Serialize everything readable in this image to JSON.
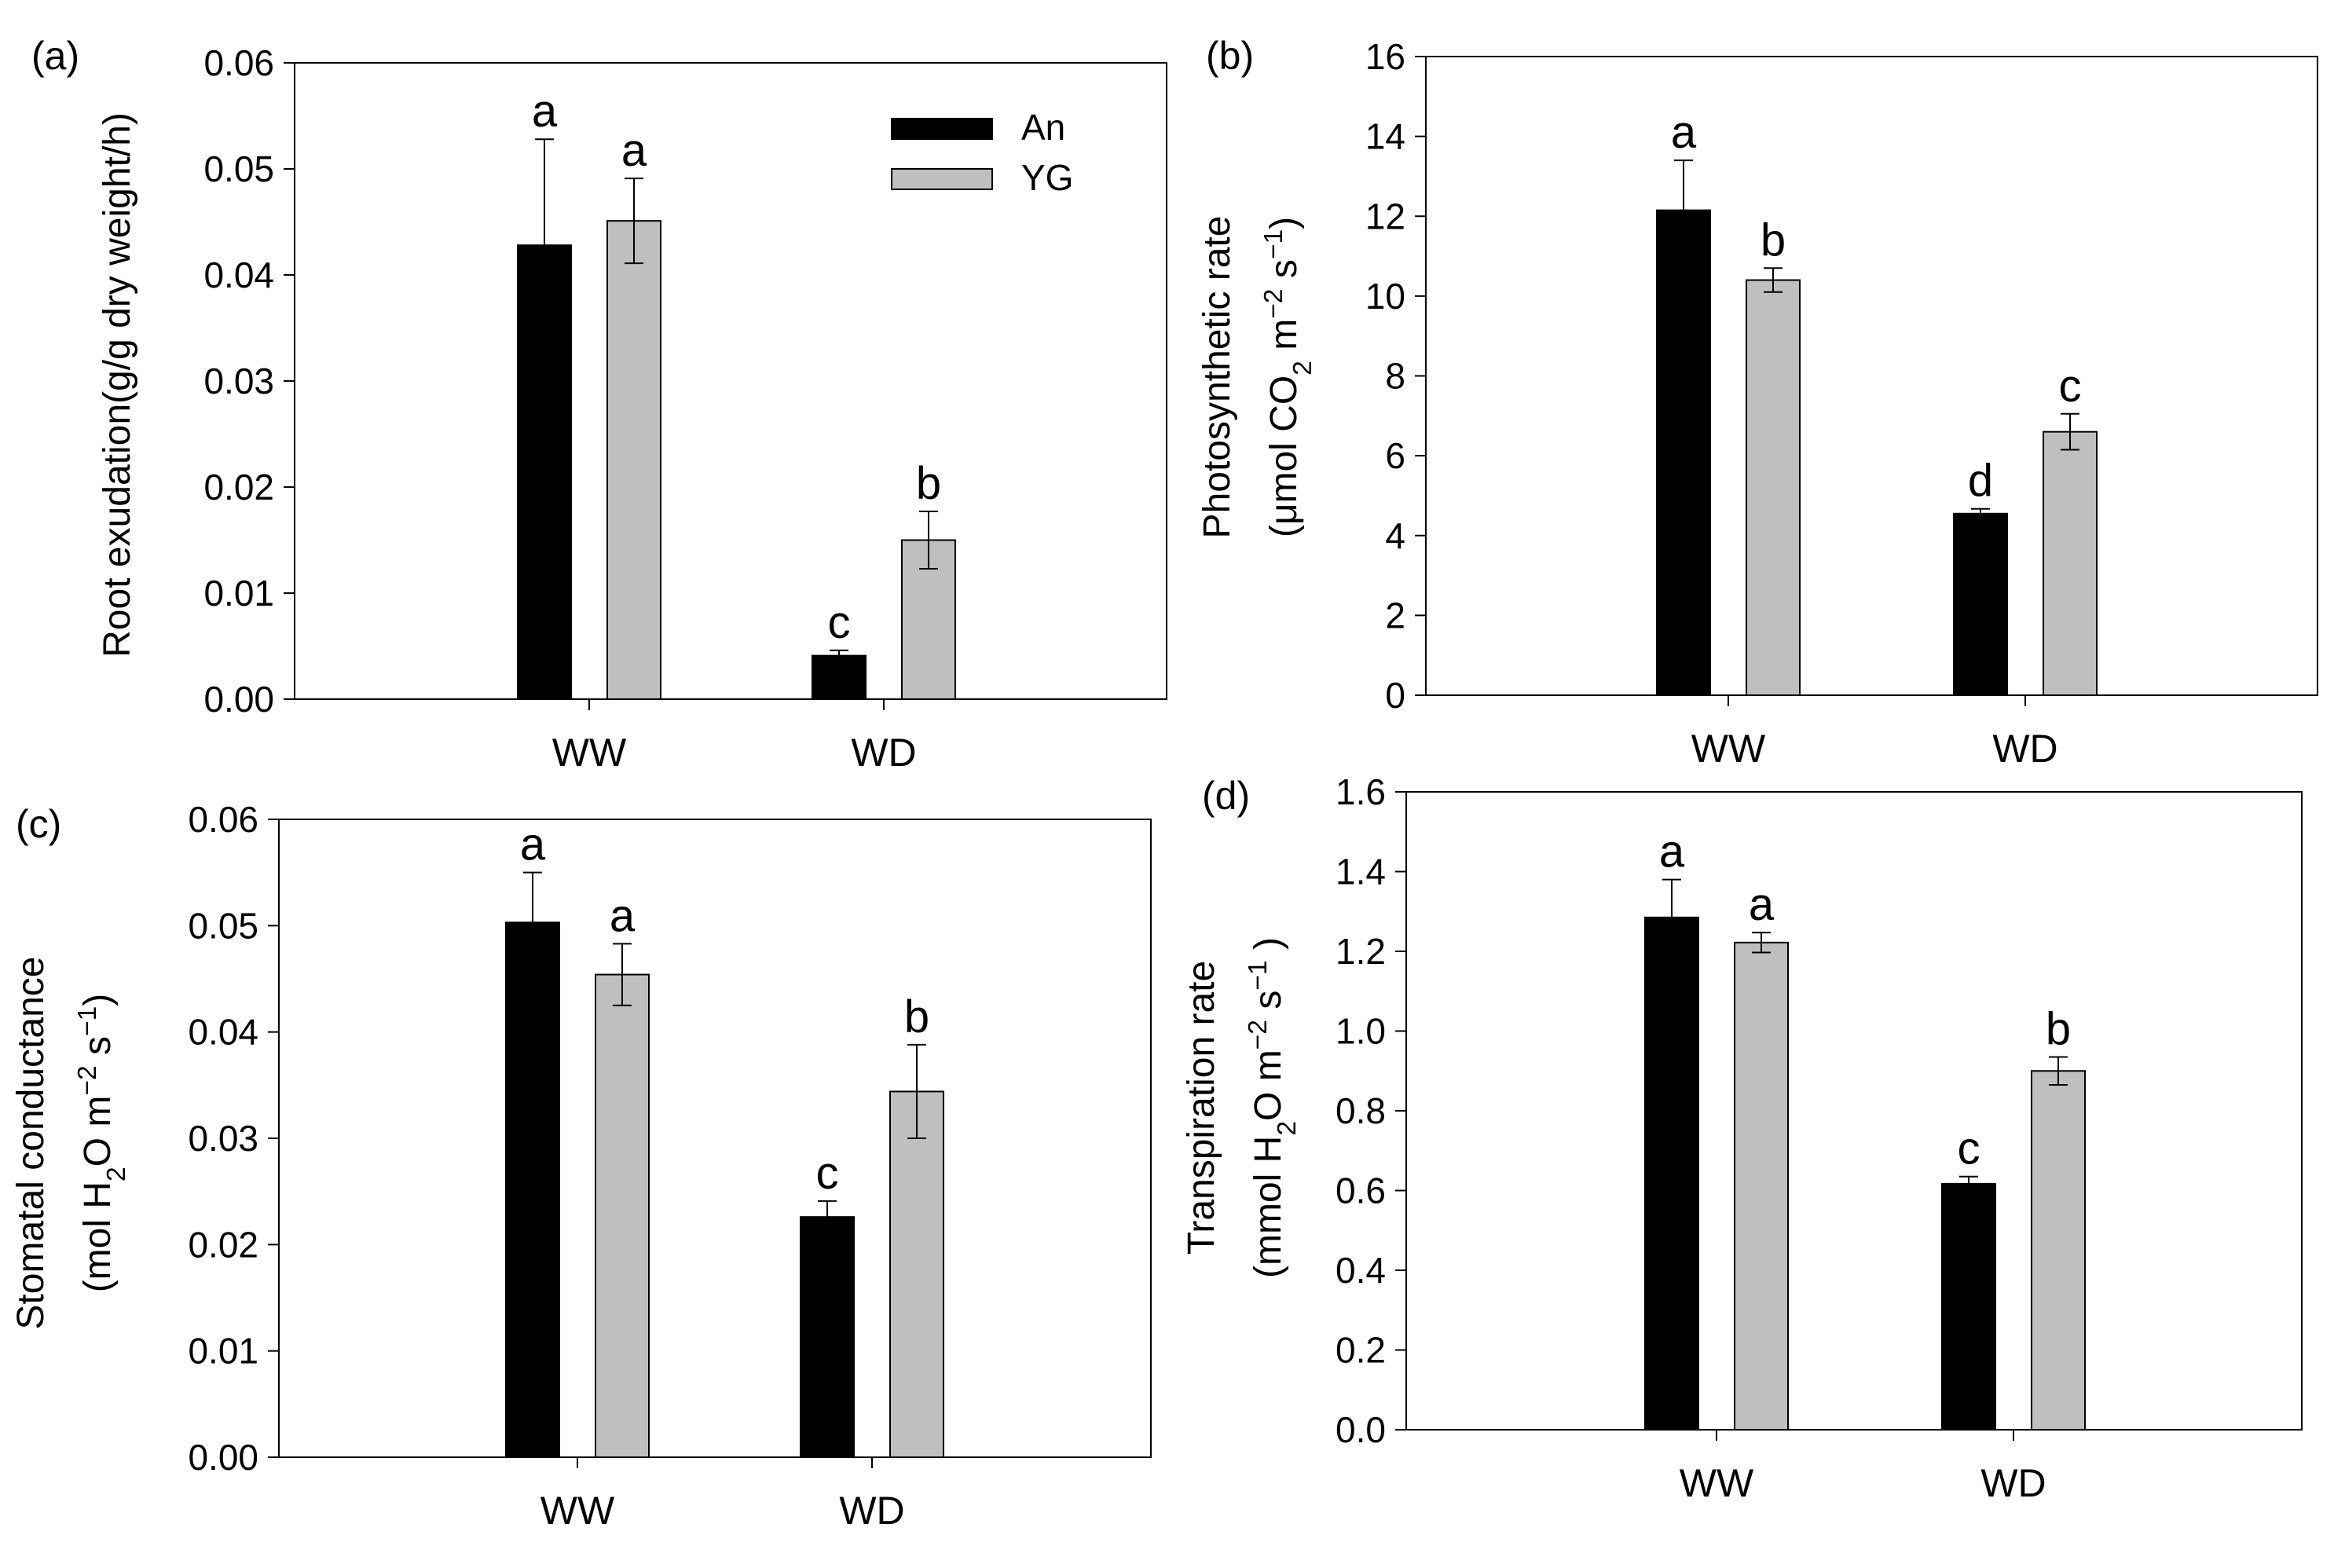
{
  "figure": {
    "background": "#ffffff"
  },
  "chart_data": [
    {
      "panel": "(a)",
      "type": "bar",
      "categories": [
        "WW",
        "WD"
      ],
      "series": [
        {
          "name": "An",
          "color": "#000000",
          "values": [
            0.0428,
            0.0041
          ],
          "errors": [
            0.01,
            0.0005
          ],
          "letters": [
            "a",
            "c"
          ]
        },
        {
          "name": "YG",
          "color": "#bfbfbf",
          "values": [
            0.0451,
            0.015
          ],
          "errors": [
            0.004,
            0.0027
          ],
          "letters": [
            "a",
            "b"
          ]
        }
      ],
      "ylabel": "Root exudation(g/g dry weight/h)",
      "ylabel2": "",
      "ylim": [
        0,
        0.06
      ],
      "yticks": [
        "0.00",
        "0.01",
        "0.02",
        "0.03",
        "0.04",
        "0.05",
        "0.06"
      ],
      "legend": {
        "position": "top-right",
        "entries": [
          "An",
          "YG"
        ]
      }
    },
    {
      "panel": "(b)",
      "type": "bar",
      "categories": [
        "WW",
        "WD"
      ],
      "series": [
        {
          "name": "An",
          "color": "#000000",
          "values": [
            12.15,
            4.55
          ],
          "errors": [
            1.25,
            0.12
          ],
          "letters": [
            "a",
            "d"
          ]
        },
        {
          "name": "YG",
          "color": "#bfbfbf",
          "values": [
            10.4,
            6.6
          ],
          "errors": [
            0.3,
            0.45
          ],
          "letters": [
            "b",
            "c"
          ]
        }
      ],
      "ylabel": "Photosynthetic rate",
      "ylabel2": "(μmol CO₂ m⁻² s⁻¹)",
      "ylim": [
        0,
        16
      ],
      "yticks": [
        "0",
        "2",
        "4",
        "6",
        "8",
        "10",
        "12",
        "14",
        "16"
      ]
    },
    {
      "panel": "(c)",
      "type": "bar",
      "categories": [
        "WW",
        "WD"
      ],
      "series": [
        {
          "name": "An",
          "color": "#000000",
          "values": [
            0.0503,
            0.0226
          ],
          "errors": [
            0.0047,
            0.0015
          ],
          "letters": [
            "a",
            "c"
          ]
        },
        {
          "name": "YG",
          "color": "#bfbfbf",
          "values": [
            0.0454,
            0.0344
          ],
          "errors": [
            0.0029,
            0.0044
          ],
          "letters": [
            "a",
            "b"
          ]
        }
      ],
      "ylabel": "Stomatal conductance",
      "ylabel2": "(mol H₂O m⁻² s⁻¹)",
      "ylim": [
        0,
        0.06
      ],
      "yticks": [
        "0.00",
        "0.01",
        "0.02",
        "0.03",
        "0.04",
        "0.05",
        "0.06"
      ]
    },
    {
      "panel": "(d)",
      "type": "bar",
      "categories": [
        "WW",
        "WD"
      ],
      "series": [
        {
          "name": "An",
          "color": "#000000",
          "values": [
            1.285,
            0.617
          ],
          "errors": [
            0.095,
            0.018
          ],
          "letters": [
            "a",
            "c"
          ]
        },
        {
          "name": "YG",
          "color": "#bfbfbf",
          "values": [
            1.222,
            0.9
          ],
          "errors": [
            0.025,
            0.035
          ],
          "letters": [
            "a",
            "b"
          ]
        }
      ],
      "ylabel": "Transpiration rate",
      "ylabel2": "(mmol H₂O m⁻² s⁻¹ )",
      "ylim": [
        0,
        1.6
      ],
      "yticks": [
        "0.0",
        "0.2",
        "0.4",
        "0.6",
        "0.8",
        "1.0",
        "1.2",
        "1.4",
        "1.6"
      ]
    }
  ]
}
